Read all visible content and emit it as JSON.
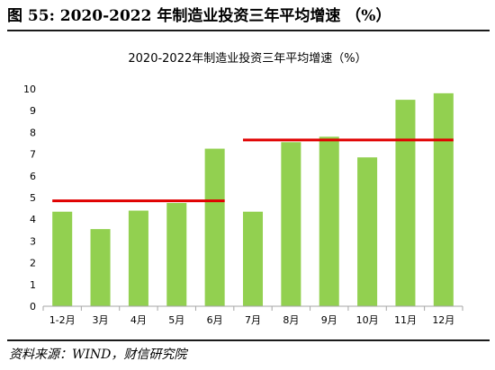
{
  "figure": {
    "title": "图 55:  2020-2022 年制造业投资三年平均增速 （%）",
    "source": "资料来源：WIND，财信研究院"
  },
  "colors": {
    "bar": "#92d050",
    "reference_line": "#e00000",
    "axis": "#a6a6a6"
  },
  "chart_data": {
    "type": "bar",
    "title": "2020-2022年制造业投资三年平均增速（%）",
    "categories": [
      "1-2月",
      "3月",
      "4月",
      "5月",
      "6月",
      "7月",
      "8月",
      "9月",
      "10月",
      "11月",
      "12月"
    ],
    "values": [
      4.35,
      3.55,
      4.4,
      4.75,
      7.25,
      4.35,
      7.55,
      7.8,
      6.85,
      9.5,
      9.8
    ],
    "ylim": [
      0,
      10
    ],
    "yticks": [
      0,
      1,
      2,
      3,
      4,
      5,
      6,
      7,
      8,
      9,
      10
    ],
    "grid": false,
    "legend": "none",
    "reference_lines": [
      {
        "from_category": "1-2月",
        "to_category": "6月",
        "value": 4.85
      },
      {
        "from_category": "7月",
        "to_category": "12月",
        "value": 7.65
      }
    ]
  }
}
